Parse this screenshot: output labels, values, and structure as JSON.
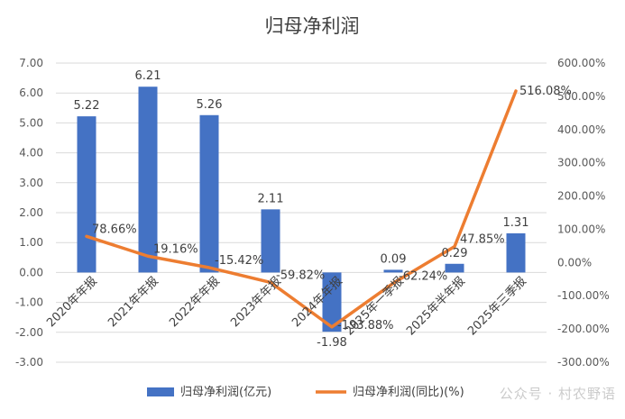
{
  "chart_data": {
    "type": "bar",
    "title": "归母净利润",
    "categories": [
      "2020年年报",
      "2021年年报",
      "2022年年报",
      "2023年年报",
      "2024年年报",
      "2025年一季报",
      "2025年半年报",
      "2025年三季报"
    ],
    "series": [
      {
        "name": "归母净利润(亿元)",
        "type": "bar",
        "axis": "left",
        "color": "#4472C4",
        "values": [
          5.22,
          6.21,
          5.26,
          2.11,
          -1.98,
          0.09,
          0.29,
          1.31
        ],
        "labels": [
          "5.22",
          "6.21",
          "5.26",
          "2.11",
          "-1.98",
          "0.09",
          "0.29",
          "1.31"
        ]
      },
      {
        "name": "归母净利润(同比)(%)",
        "type": "line",
        "axis": "right",
        "color": "#ED7D31",
        "values": [
          78.66,
          19.16,
          -15.42,
          -59.82,
          -193.88,
          -62.24,
          47.85,
          516.08
        ],
        "labels": [
          "78.66%",
          "19.16%",
          "-15.42%",
          "-59.82%",
          "-193.88%",
          "-62.24%",
          "47.85%",
          "516.08%"
        ]
      }
    ],
    "y_left": {
      "ylim": [
        -3,
        7
      ],
      "ticks": [
        "7.00",
        "6.00",
        "5.00",
        "4.00",
        "3.00",
        "2.00",
        "1.00",
        "0.00",
        "-1.00",
        "-2.00",
        "-3.00"
      ]
    },
    "y_right": {
      "ylim": [
        -300,
        600
      ],
      "ticks": [
        "600.00%",
        "500.00%",
        "400.00%",
        "300.00%",
        "200.00%",
        "100.00%",
        "0.00%",
        "-100.00%",
        "-200.00%",
        "-300.00%"
      ]
    },
    "grid": true,
    "legend_position": "bottom"
  },
  "watermark": "公众号 · 村农野语"
}
